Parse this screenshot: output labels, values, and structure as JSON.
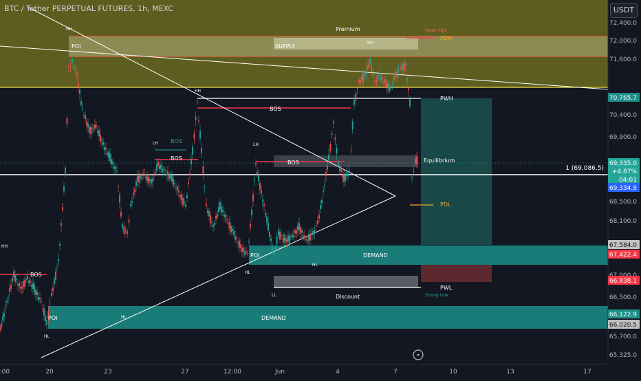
{
  "header": {
    "title": "BTC / Tether PERPETUAL FUTURES, 1h, MEXC",
    "currency_button": "USDT"
  },
  "colors": {
    "background": "#131722",
    "premium_zone": "#6b6a1e",
    "supply_zone": "#9c9b66",
    "demand_zone": "#1c8e88",
    "candle_up": "#26a69a",
    "candle_down": "#ef5350",
    "bos_line": "#f23645",
    "pdh_label": "#f0a830",
    "axis_text": "#b2b5be"
  },
  "chart_data": {
    "type": "candlestick",
    "symbol": "BTC / Tether PERPETUAL FUTURES",
    "interval": "1h",
    "exchange": "MEXC",
    "ylim": [
      65150,
      73000
    ],
    "y_ticks": [
      "72,400.0",
      "72,000.0",
      "71,600.0",
      "70,400.0",
      "69,900.0",
      "68,500.0",
      "68,100.0",
      "67,000.0",
      "66,500.0",
      "65,700.0",
      "65,325.0"
    ],
    "x_ticks": [
      "2:00",
      "20",
      "23",
      "27",
      "12:00",
      "Jun",
      "4",
      "7",
      "10",
      "13",
      "17"
    ],
    "price_badges": [
      {
        "value": "70,765.7",
        "color": "#1c8e88"
      },
      {
        "value": "69,335.0",
        "color": "#26a69a"
      },
      {
        "value": "+4.87%",
        "color": "#26a69a"
      },
      {
        "value": "04:01",
        "color": "#26a69a"
      },
      {
        "value": "69,334.9",
        "color": "#2962ff"
      },
      {
        "value": "67,584.0",
        "color": "#c0c0c0"
      },
      {
        "value": "67,422.4",
        "color": "#f23645"
      },
      {
        "value": "66,838.1",
        "color": "#f23645"
      },
      {
        "value": "66,122.9",
        "color": "#1c8e88"
      },
      {
        "value": "66,020.5",
        "color": "#c0c0c0"
      }
    ],
    "horizontal_line_label": "1 (69,086.5)",
    "labels": {
      "premium": "Premium",
      "discount": "Discount",
      "supply": "SUPPLY",
      "demand_upper": "DEMAND",
      "demand_lower": "DEMAND",
      "poi_top": "POI",
      "poi_mid": "POI",
      "poi_bottom": "POI",
      "equilibrium": "Equilibrium",
      "pwh": "PWH",
      "pwl": "PWL",
      "pdh": "PDH",
      "pdl": "PDL",
      "weak_high": "Weak High",
      "strong_low": "Strong Low",
      "bos_main": "BOS",
      "bos_left": "BOS",
      "bos_mid": "BOS",
      "bos_lower_mid": "BOS",
      "bos_teal": "BOS",
      "hh_top": "HH",
      "hh_left": "HH",
      "hh_mid": "HH",
      "hh_right": "HH",
      "lh_left": "LH",
      "lh_mid": "LH",
      "hl_left": "HL",
      "hl_mid": "HL",
      "hl_low1": "HL",
      "hl_low2": "HL",
      "ll": "LL"
    }
  }
}
